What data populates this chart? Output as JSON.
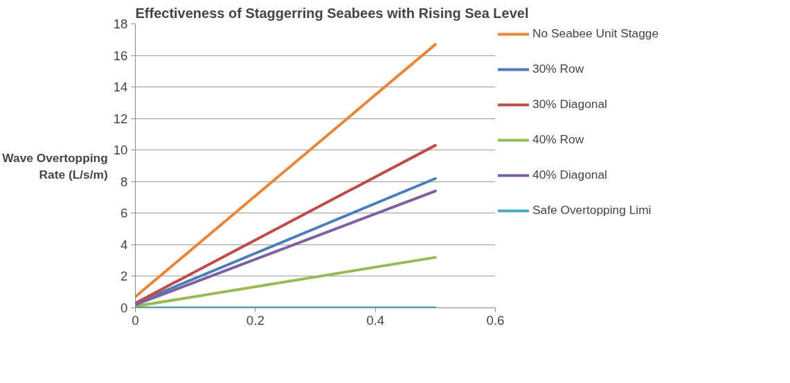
{
  "chart_data": {
    "type": "line",
    "title": "Effectiveness of Staggerring Seabees with Rising Sea Level",
    "ylabel": "Wave Overtopping Rate (L/s/m)",
    "x": [
      0,
      0.5
    ],
    "series": [
      {
        "name": "No Seabee Unit Stagge",
        "color": "#e8873a",
        "values": [
          0.7,
          16.7
        ]
      },
      {
        "name": "30% Row",
        "color": "#4a7ebb",
        "values": [
          0.3,
          8.2
        ]
      },
      {
        "name": "30% Diagonal",
        "color": "#be4b48",
        "values": [
          0.3,
          10.3
        ]
      },
      {
        "name": "40% Row",
        "color": "#98b954",
        "values": [
          0.1,
          3.2
        ]
      },
      {
        "name": "40% Diagonal",
        "color": "#7d60a0",
        "values": [
          0.2,
          7.4
        ]
      },
      {
        "name": "Safe Overtopping Limi",
        "color": "#46aac5",
        "values": [
          0,
          0
        ]
      }
    ],
    "xlim": [
      0,
      0.6
    ],
    "xticks": [
      0,
      {
        "value": 0.2,
        "label": "0.2"
      },
      {
        "value": 0.4,
        "label": "0.4"
      },
      {
        "value": 0.6,
        "label": "0.6"
      }
    ],
    "ylim": [
      0,
      18
    ],
    "yticks": [
      0,
      2,
      4,
      6,
      8,
      10,
      12,
      14,
      16,
      18
    ],
    "grid": "y",
    "legend": "right",
    "marker": "none",
    "line_style": "solid"
  }
}
